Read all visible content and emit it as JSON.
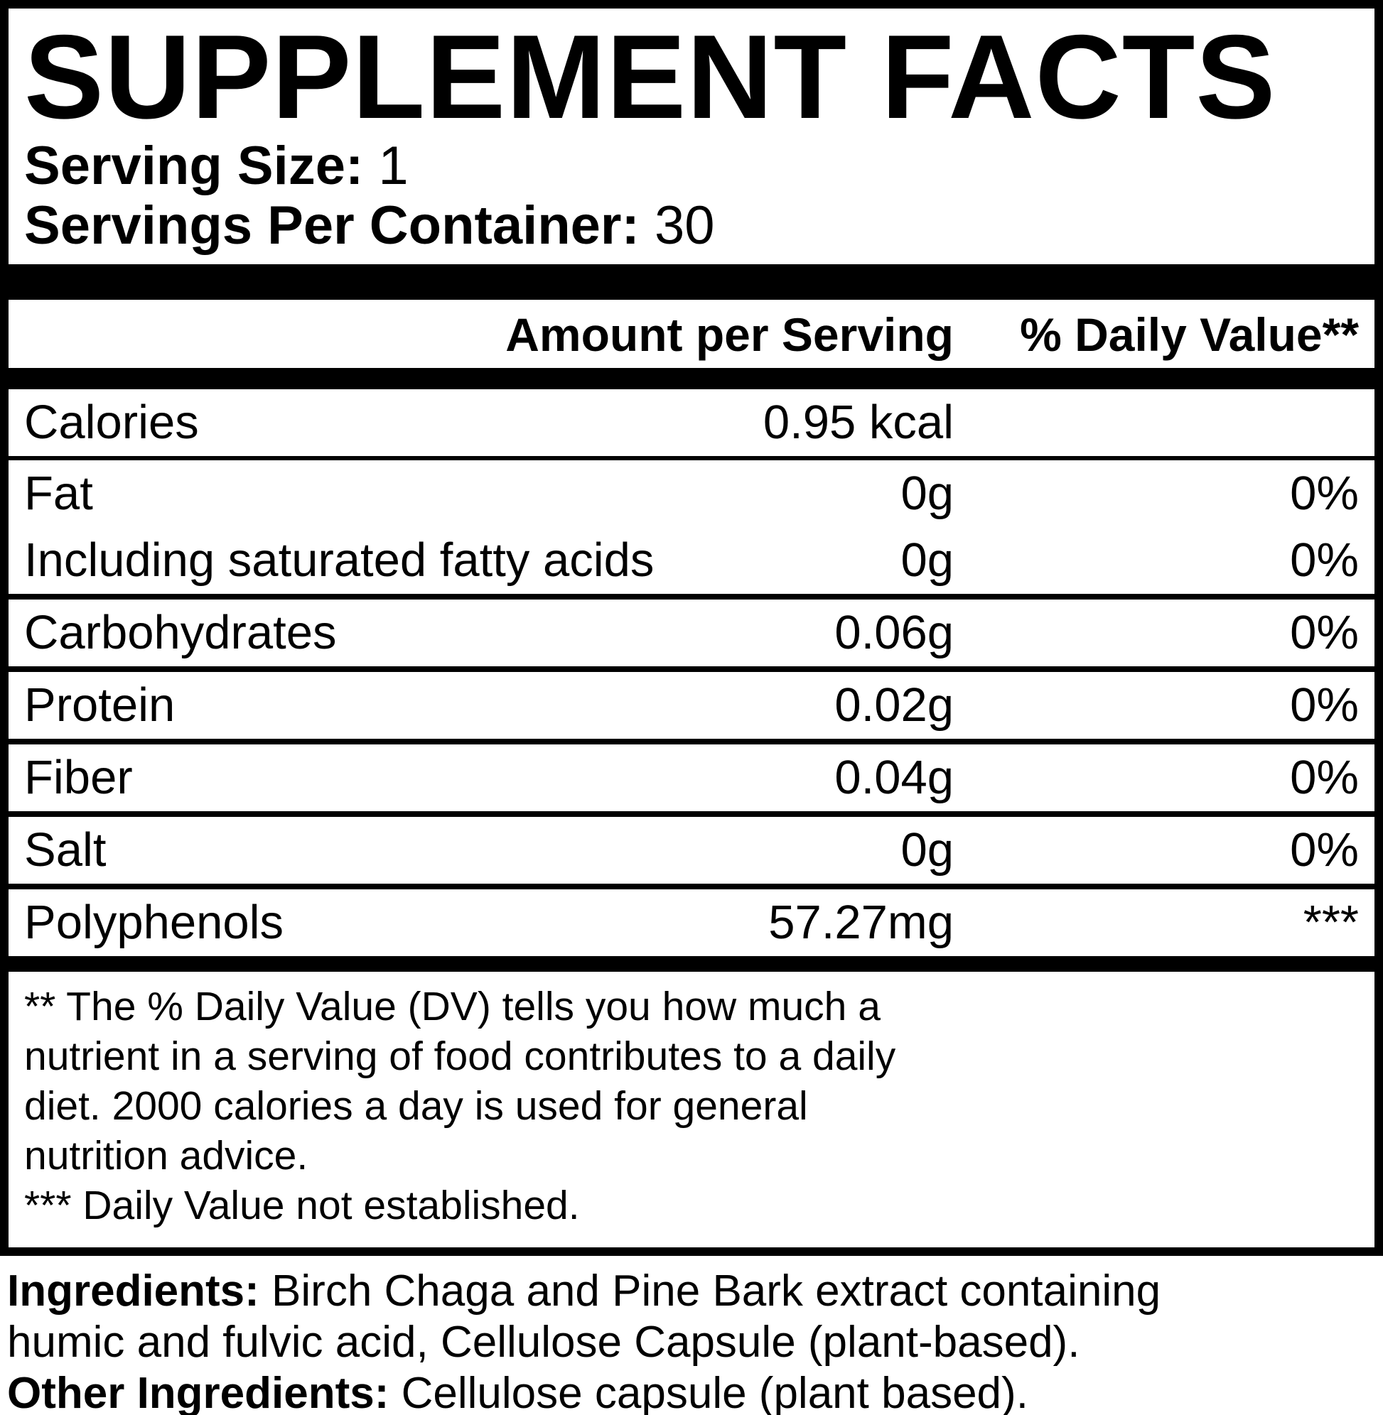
{
  "title": "SUPPLEMENT FACTS",
  "serving": {
    "size_label": "Serving Size:",
    "size_value": "1",
    "per_container_label": "Servings Per Container:",
    "per_container_value": "30"
  },
  "table": {
    "amount_header": "Amount per Serving",
    "dv_header": "% Daily Value**",
    "rows": [
      {
        "name": "Calories",
        "amount": "0.95 kcal",
        "dv": ""
      },
      {
        "name": "Fat",
        "amount": "0g",
        "dv": "0%"
      },
      {
        "name": "Including saturated fatty acids",
        "amount": "0g",
        "dv": "0%"
      },
      {
        "name": "Carbohydrates",
        "amount": "0.06g",
        "dv": "0%"
      },
      {
        "name": "Protein",
        "amount": "0.02g",
        "dv": "0%"
      },
      {
        "name": "Fiber",
        "amount": "0.04g",
        "dv": "0%"
      },
      {
        "name": "Salt",
        "amount": "0g",
        "dv": "0%"
      },
      {
        "name": "Polyphenols",
        "amount": "57.27mg",
        "dv": "***"
      }
    ]
  },
  "footnote": "** The % Daily Value (DV) tells you how much a\nnutrient in a serving of food contributes to a daily\ndiet. 2000 calories a day is used for general\nnutrition advice.\n*** Daily Value not established.",
  "ingredients": {
    "label": "Ingredients:",
    "text": "Birch Chaga and Pine Bark extract containing\nhumic and fulvic acid, Cellulose Capsule (plant-based).",
    "other_label": "Other Ingredients:",
    "other_text": "Cellulose capsule (plant based)."
  }
}
